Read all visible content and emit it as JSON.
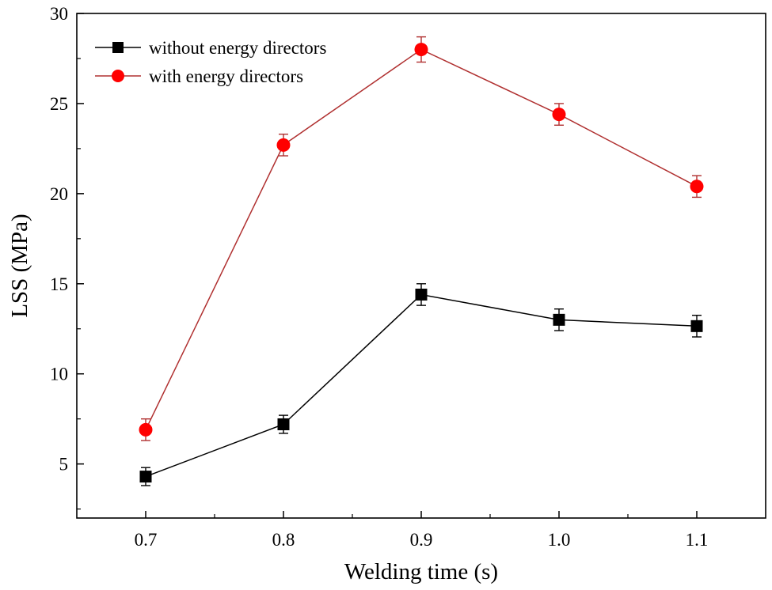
{
  "chart_data": {
    "type": "line",
    "title": "",
    "xlabel": "Welding time (s)",
    "ylabel": "LSS (MPa)",
    "xlim": [
      0.65,
      1.15
    ],
    "ylim": [
      2,
      30
    ],
    "x": [
      0.7,
      0.8,
      0.9,
      1.0,
      1.1
    ],
    "x_tick_labels": [
      "0.7",
      "0.8",
      "0.9",
      "1.0",
      "1.1"
    ],
    "y_ticks": [
      5,
      10,
      15,
      20,
      25,
      30
    ],
    "y_tick_labels": [
      "5",
      "10",
      "15",
      "20",
      "25",
      "30"
    ],
    "legend_position": "top-left",
    "grid": false,
    "series": [
      {
        "name": "without energy directors",
        "marker": "square",
        "color": "#000000",
        "line_color": "#000000",
        "values": [
          4.3,
          7.2,
          14.4,
          13.0,
          12.65
        ],
        "errors": [
          0.5,
          0.5,
          0.6,
          0.6,
          0.6
        ]
      },
      {
        "name": "with energy directors",
        "marker": "circle",
        "color": "#ff0000",
        "line_color": "#b03030",
        "values": [
          6.9,
          22.7,
          28.0,
          24.4,
          20.4
        ],
        "errors": [
          0.6,
          0.6,
          0.7,
          0.6,
          0.6
        ]
      }
    ]
  }
}
